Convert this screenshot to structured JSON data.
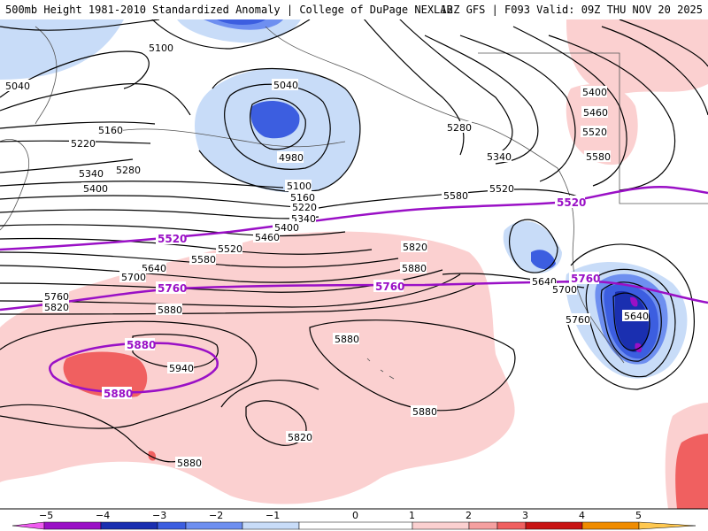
{
  "header": {
    "title": "500mb Height 1981-2010 Standardized Anomaly | College of DuPage NEXLAB",
    "run_info": "12Z GFS | F093 Valid: 09Z THU NOV 20 2025"
  },
  "contour_labels": [
    "5040",
    "5100",
    "5040",
    "4980",
    "5160",
    "5220",
    "5280",
    "5340",
    "5400",
    "5100",
    "5160",
    "5220",
    "5340",
    "5400",
    "5460",
    "5520",
    "5580",
    "5640",
    "5700",
    "5760",
    "5820",
    "5880",
    "5820",
    "5880",
    "5940",
    "5880",
    "5880",
    "5820",
    "5880",
    "5280",
    "5340",
    "5520",
    "5580",
    "5640",
    "5700",
    "5760",
    "5640",
    "5400",
    "5460",
    "5520",
    "5580"
  ],
  "purple_labels": [
    "5520",
    "5760",
    "5760",
    "5520",
    "5760",
    "5880",
    "5880"
  ],
  "colorbar": {
    "ticks": [
      "−5",
      "−4",
      "−3",
      "−2",
      "−1",
      "0",
      "1",
      "2",
      "3",
      "4",
      "5"
    ],
    "colors": [
      "#f05cf0",
      "#9a10c6",
      "#1a2fb0",
      "#3c5ee0",
      "#6e8ff0",
      "#c8dcf8",
      "#ffffff",
      "#fbd0d0",
      "#f5a0a0",
      "#f06060",
      "#c81414",
      "#f08c00",
      "#ffc850"
    ]
  },
  "colors": {
    "negative_light": "#c8dcf8",
    "negative_mid": "#6e8ff0",
    "negative_strong": "#3c5ee0",
    "positive_light": "#fbd0d0",
    "positive_mid": "#f06060",
    "purple_contour": "#9a10c6"
  }
}
